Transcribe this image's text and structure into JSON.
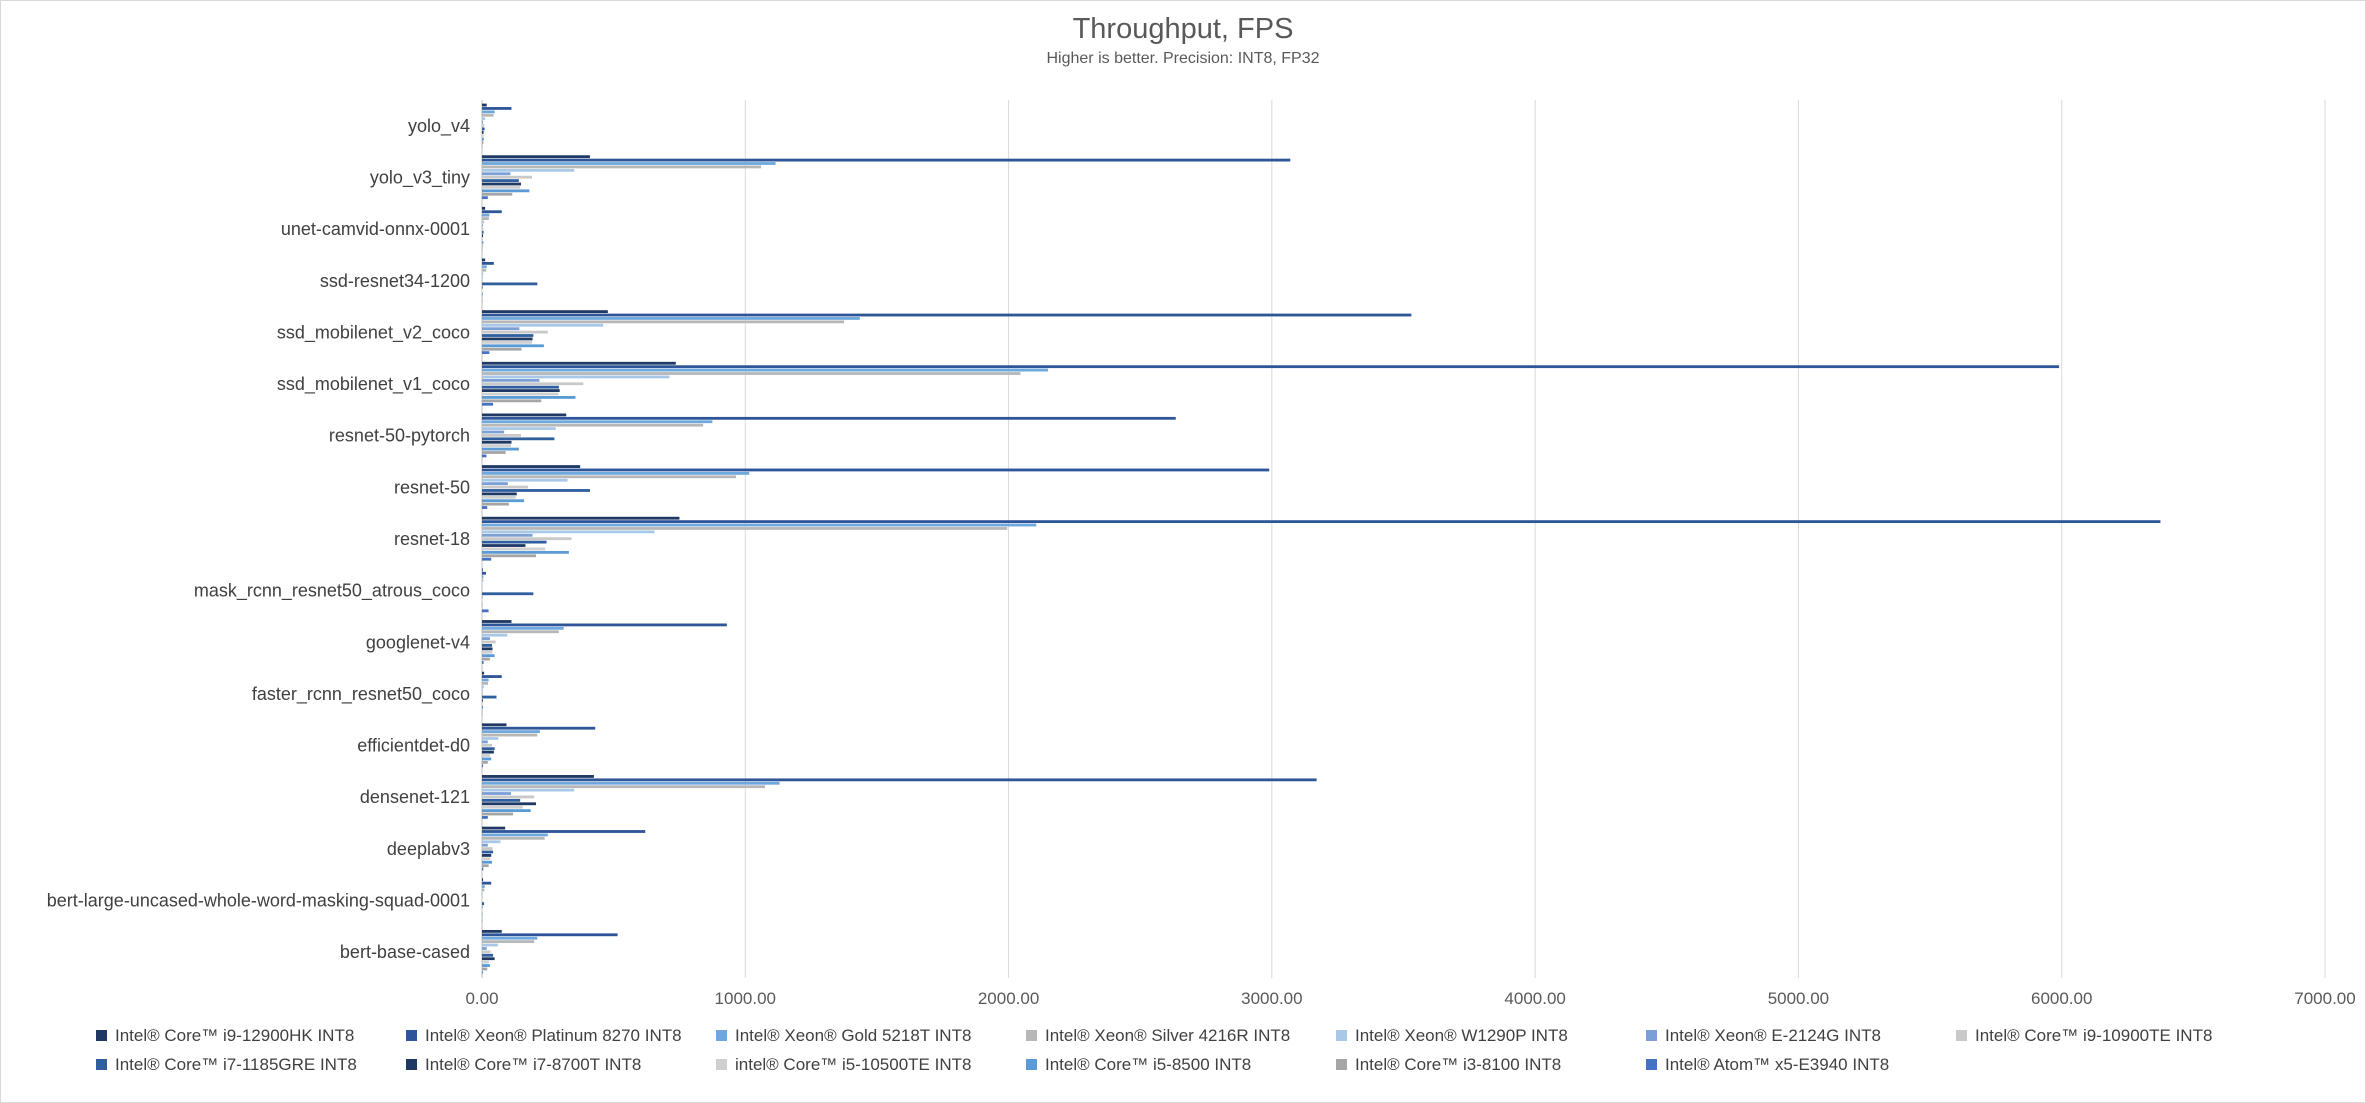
{
  "chart_data": {
    "type": "bar",
    "orientation": "horizontal",
    "title": "Throughput, FPS",
    "subtitle": "Higher is better. Precision: INT8, FP32",
    "xlim": [
      0,
      7000
    ],
    "x_ticks": [
      "0.00",
      "1000.00",
      "2000.00",
      "3000.00",
      "4000.00",
      "5000.00",
      "6000.00",
      "7000.00"
    ],
    "grid": "vertical",
    "legend_position": "bottom",
    "categories": [
      "yolo_v4",
      "yolo_v3_tiny",
      "unet-camvid-onnx-0001",
      "ssd-resnet34-1200",
      "ssd_mobilenet_v2_coco",
      "ssd_mobilenet_v1_coco",
      "resnet-50-pytorch",
      "resnet-50",
      "resnet-18",
      "mask_rcnn_resnet50_atrous_coco",
      "googlenet-v4",
      "faster_rcnn_resnet50_coco",
      "efficientdet-d0",
      "densenet-121",
      "deeplabv3",
      "bert-large-uncased-whole-word-masking-squad-0001",
      "bert-base-cased"
    ],
    "series": [
      {
        "name": "Intel® Core™ i9-12900HK INT8",
        "color": "#1f3864",
        "values": [
          18,
          410,
          12,
          12,
          478,
          736,
          320,
          373,
          750,
          3,
          112,
          8,
          93,
          425,
          88,
          4,
          75
        ]
      },
      {
        "name": "Intel® Xeon® Platinum 8270 INT8",
        "color": "#2e5597",
        "values": [
          112,
          3070,
          75,
          45,
          3530,
          5990,
          2635,
          2990,
          6375,
          15,
          930,
          75,
          430,
          3170,
          620,
          35,
          515
        ]
      },
      {
        "name": "Intel® Xeon® Gold 5218T INT8",
        "color": "#6fa8dc",
        "values": [
          48,
          1115,
          28,
          18,
          1435,
          2150,
          875,
          1015,
          2105,
          5,
          310,
          25,
          220,
          1130,
          250,
          10,
          210
        ]
      },
      {
        "name": "Intel® Xeon® Silver 4216R INT8",
        "color": "#b7b7b7",
        "values": [
          44,
          1060,
          26,
          16,
          1375,
          2045,
          840,
          965,
          1995,
          5,
          292,
          23,
          210,
          1075,
          238,
          9,
          198
        ]
      },
      {
        "name": "Intel® Xeon® W1290P INT8",
        "color": "#a9c8e8",
        "values": [
          12,
          350,
          8,
          5,
          460,
          712,
          280,
          325,
          655,
          2,
          96,
          7,
          62,
          350,
          70,
          3,
          60
        ]
      },
      {
        "name": "Intel® Xeon® E-2124G INT8",
        "color": "#7c9fd6",
        "values": [
          4,
          108,
          3,
          2,
          142,
          218,
          84,
          98,
          192,
          1,
          30,
          2,
          22,
          110,
          22,
          1,
          18
        ]
      },
      {
        "name": "Intel® Core™ i9-10900TE INT8",
        "color": "#c9c9c9",
        "values": [
          8,
          190,
          5,
          3,
          250,
          385,
          148,
          175,
          340,
          1,
          52,
          4,
          38,
          198,
          40,
          2,
          32
        ]
      },
      {
        "name": "Intel® Core™ i7-1185GRE INT8",
        "color": "#2f5f9e",
        "values": [
          10,
          140,
          6,
          210,
          195,
          292,
          275,
          410,
          245,
          195,
          38,
          55,
          48,
          145,
          42,
          8,
          42
        ]
      },
      {
        "name": "Intel® Core™ i7-8700T INT8",
        "color": "#203864",
        "values": [
          6,
          148,
          4,
          2,
          192,
          295,
          112,
          132,
          165,
          1,
          40,
          3,
          45,
          205,
          35,
          1,
          48
        ]
      },
      {
        "name": "intel® Core™ i5-10500TE INT8",
        "color": "#d0d0d0",
        "values": [
          6,
          145,
          4,
          2,
          190,
          290,
          110,
          128,
          240,
          1,
          39,
          3,
          30,
          155,
          32,
          1,
          26
        ]
      },
      {
        "name": "Intel® Core™ i5-8500 INT8",
        "color": "#5b9bd5",
        "values": [
          7,
          180,
          5,
          3,
          235,
          355,
          140,
          160,
          330,
          1,
          48,
          4,
          35,
          185,
          38,
          2,
          30
        ]
      },
      {
        "name": "Intel® Core™ i3-8100 INT8",
        "color": "#a5a5a5",
        "values": [
          5,
          115,
          3,
          2,
          150,
          225,
          90,
          102,
          205,
          1,
          30,
          2,
          22,
          118,
          25,
          1,
          20
        ]
      },
      {
        "name": "Intel® Atom™ x5-E3940 INT8",
        "color": "#4472c4",
        "values": [
          1,
          22,
          1,
          1,
          28,
          42,
          17,
          20,
          35,
          25,
          6,
          1,
          4,
          22,
          5,
          1,
          3
        ]
      }
    ]
  }
}
